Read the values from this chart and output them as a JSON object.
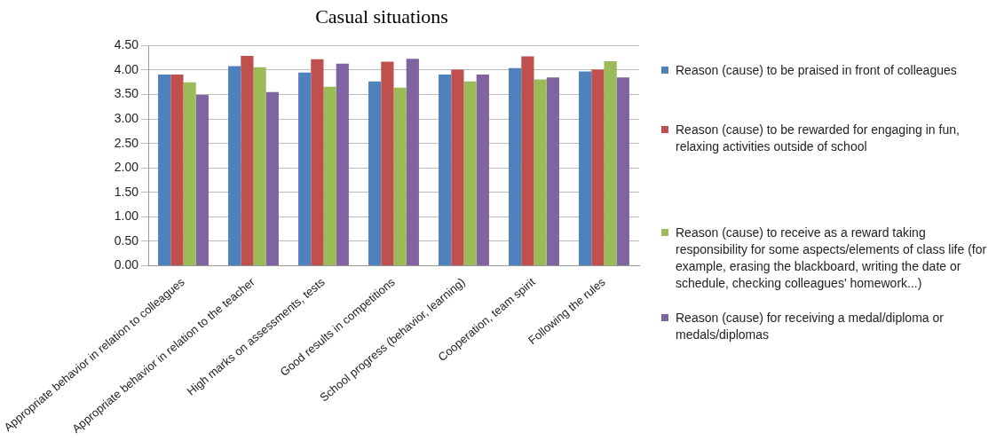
{
  "chart_data": {
    "type": "bar",
    "title": "Casual situations",
    "categories": [
      "Appropriate behavior in relation to colleagues",
      "Appropriate behavior in relation to the teacher",
      "High marks on assessments, tests",
      "Good results in competitions",
      "School progress (behavior, learning)",
      "Cooperation, team spirit",
      "Following the rules"
    ],
    "series": [
      {
        "name": "Reason (cause) to be praised in front of colleagues",
        "color": "#4f81bd",
        "values": [
          3.91,
          4.08,
          3.95,
          3.77,
          3.91,
          4.04,
          3.97
        ]
      },
      {
        "name": "Reason (cause) to be rewarded for engaging in fun, relaxing activities outside of school",
        "color": "#c0504d",
        "values": [
          3.91,
          4.29,
          4.22,
          4.17,
          4.01,
          4.28,
          4.01
        ]
      },
      {
        "name": "Reason (cause) to receive as a reward taking responsibility for some aspects/elements of class life (for example, erasing the blackboard, writing the date or schedule, checking colleagues' homework...)",
        "color": "#9bbb59",
        "values": [
          3.75,
          4.06,
          3.66,
          3.64,
          3.77,
          3.81,
          4.18
        ]
      },
      {
        "name": "Reason (cause) for receiving a medal/diploma or medals/diplomas",
        "color": "#8064a2",
        "values": [
          3.49,
          3.55,
          4.13,
          4.23,
          3.91,
          3.85,
          3.85
        ]
      }
    ],
    "ylim": [
      0,
      4.5
    ],
    "yticks": [
      {
        "value": 0,
        "label": "0.00"
      },
      {
        "value": 0.5,
        "label": "0.50"
      },
      {
        "value": 1,
        "label": "1.00"
      },
      {
        "value": 1.5,
        "label": "1.50"
      },
      {
        "value": 2,
        "label": "2.00"
      },
      {
        "value": 2.5,
        "label": "2.50"
      },
      {
        "value": 3,
        "label": "3.00"
      },
      {
        "value": 3.5,
        "label": "3.50"
      },
      {
        "value": 4,
        "label": "4.00"
      },
      {
        "value": 4.5,
        "label": "4.50"
      }
    ],
    "grid": "y",
    "legend": "right"
  }
}
